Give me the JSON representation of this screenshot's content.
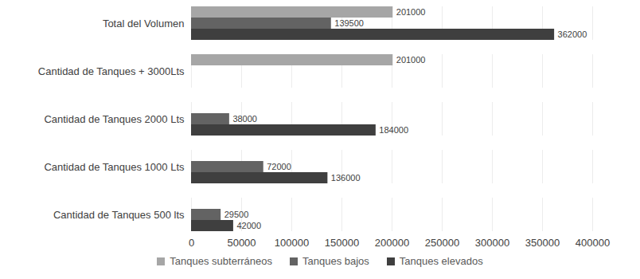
{
  "chart_data": {
    "type": "bar",
    "orientation": "horizontal",
    "categories": [
      "Total del Volumen",
      "Cantidad de Tanques + 3000Lts",
      "Cantidad de Tanques 2000 Lts",
      "Cantidad de Tanques 1000 Lts",
      "Cantidad de Tanques 500 lts"
    ],
    "series": [
      {
        "name": "Tanques subterráneos",
        "color": "#a6a6a6",
        "values": [
          201000,
          201000,
          null,
          null,
          null
        ]
      },
      {
        "name": "Tanques bajos",
        "color": "#636363",
        "values": [
          139500,
          null,
          38000,
          72000,
          29500
        ]
      },
      {
        "name": "Tanques elevados",
        "color": "#3f3f3f",
        "values": [
          362000,
          null,
          184000,
          136000,
          42000
        ]
      }
    ],
    "xlim": [
      0,
      400000
    ],
    "xticks": [
      0,
      50000,
      100000,
      150000,
      200000,
      250000,
      300000,
      350000,
      400000
    ],
    "grid": true,
    "data_labels": true,
    "legend": "bottom"
  }
}
